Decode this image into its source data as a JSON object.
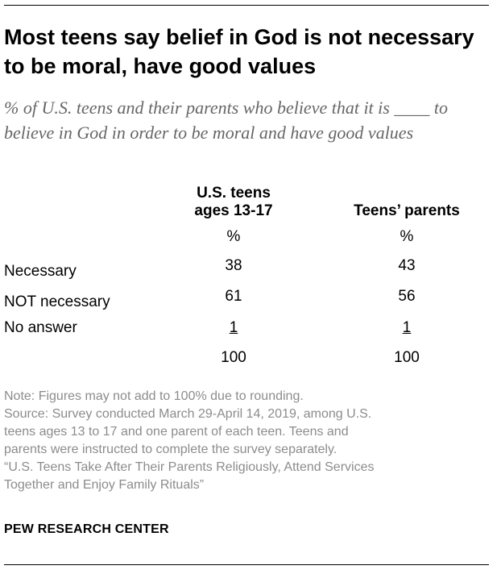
{
  "chart_data": {
    "type": "table",
    "title": "Most teens say belief in God is not necessary to be moral, have good values",
    "subtitle": "% of U.S. teens and their parents who believe that it is ____ to believe in God in order to be moral and have good values",
    "columns": [
      {
        "name": "U.S. teens ages 13-17",
        "line1": "U.S. teens",
        "line2": "ages 13-17",
        "unit": "%"
      },
      {
        "name": "Teens’ parents",
        "unit": "%"
      }
    ],
    "rows": [
      {
        "label": "Necessary",
        "values": [
          "38",
          "43"
        ]
      },
      {
        "label": "NOT necessary",
        "values": [
          "61",
          "56"
        ]
      },
      {
        "label": "No answer",
        "values": [
          "1",
          "1"
        ]
      },
      {
        "label": "",
        "values": [
          "100",
          "100"
        ]
      }
    ]
  },
  "notes": {
    "note": "Note: Figures may not add to 100% due to rounding.",
    "source_lines": [
      "Source: Survey conducted March 29-April 14, 2019, among U.S.",
      "teens ages 13 to 17 and one parent of each teen. Teens and",
      "parents were instructed to complete the survey separately.",
      "“U.S. Teens Take After Their Parents Religiously, Attend Services",
      "Together and Enjoy Family Rituals”"
    ]
  },
  "brand": "PEW RESEARCH CENTER"
}
